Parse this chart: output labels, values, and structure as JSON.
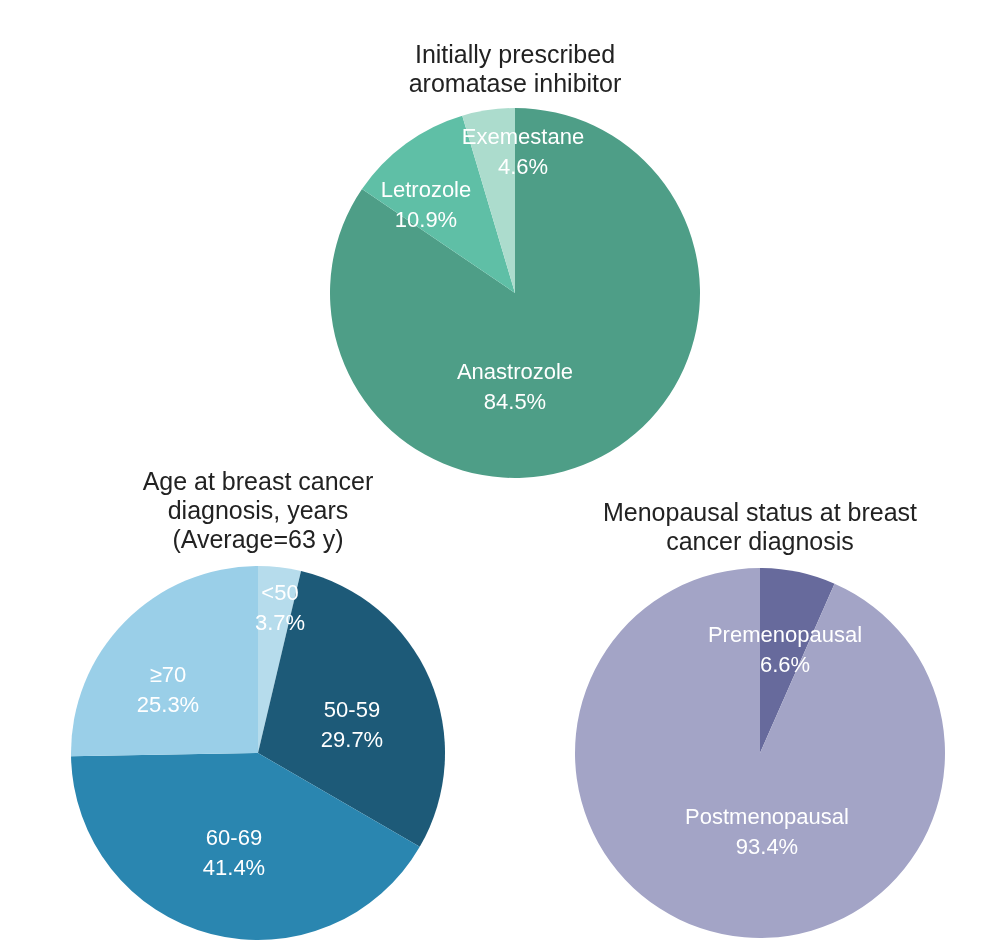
{
  "chart_data": [
    {
      "type": "pie",
      "title": "Initially prescribed\naromatase inhibitor",
      "categories": [
        "Anastrozole",
        "Letrozole",
        "Exemestane"
      ],
      "values": [
        84.5,
        10.9,
        4.6
      ],
      "colors": [
        "#4e9e87",
        "#5fbfa6",
        "#acdccd"
      ],
      "value_labels": [
        "84.5%",
        "10.9%",
        "4.6%"
      ]
    },
    {
      "type": "pie",
      "title": "Age at breast cancer\ndiagnosis, years\n(Average=63 y)",
      "categories": [
        "<50",
        "50-59",
        "60-69",
        "≥70"
      ],
      "values": [
        3.7,
        29.7,
        41.4,
        25.3
      ],
      "colors": [
        "#b6dcec",
        "#1d5a78",
        "#2a86b0",
        "#9acfe8"
      ],
      "value_labels": [
        "3.7%",
        "29.7%",
        "41.4%",
        "25.3%"
      ]
    },
    {
      "type": "pie",
      "title": "Menopausal status at breast\ncancer diagnosis",
      "categories": [
        "Premenopausal",
        "Postmenopausal"
      ],
      "values": [
        6.6,
        93.4
      ],
      "colors": [
        "#676a9c",
        "#a3a4c6"
      ],
      "value_labels": [
        "6.6%",
        "93.4%"
      ]
    }
  ]
}
